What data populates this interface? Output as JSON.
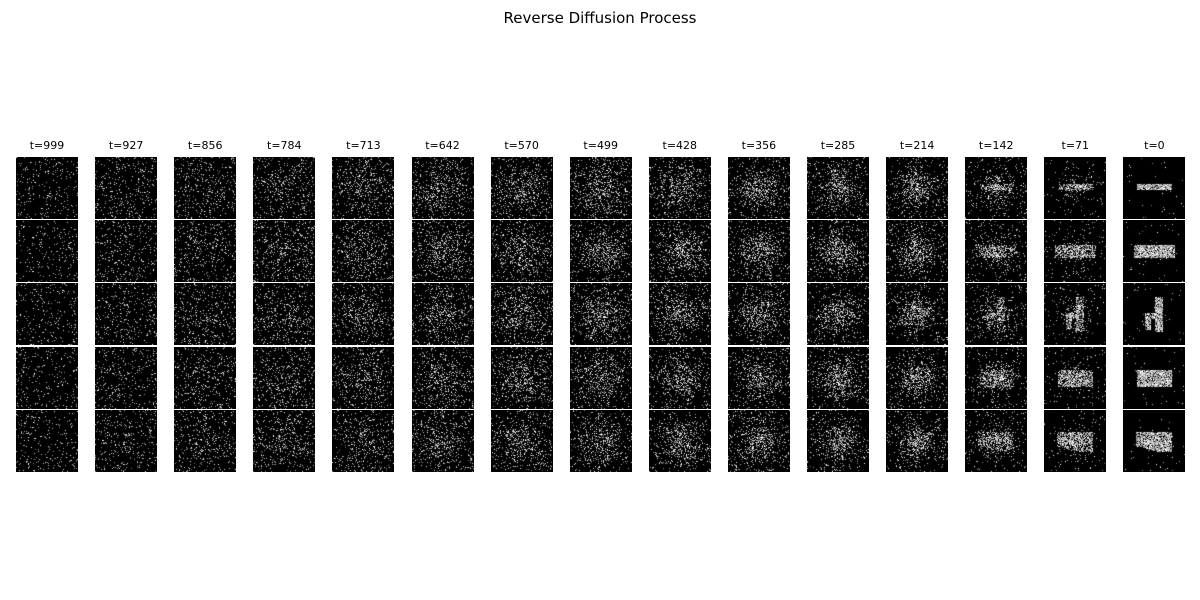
{
  "figure": {
    "title": "Reverse Diffusion Process",
    "timesteps": [
      "t=999",
      "t=927",
      "t=856",
      "t=784",
      "t=713",
      "t=642",
      "t=570",
      "t=499",
      "t=428",
      "t=356",
      "t=285",
      "t=214",
      "t=142",
      "t=71",
      "t=0"
    ],
    "rows": 5,
    "colors": {
      "tile_background": "#000000",
      "pixel": "#ffffff",
      "page_background": "#ffffff"
    }
  }
}
